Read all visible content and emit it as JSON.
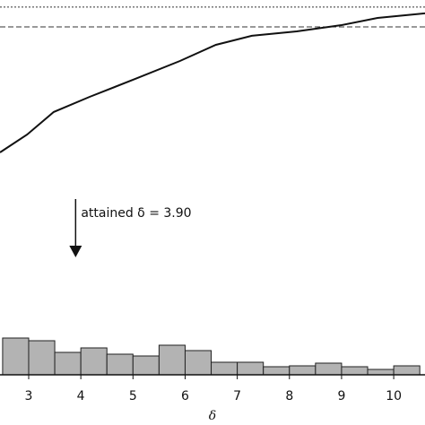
{
  "chart_data": {
    "type": "line+histogram",
    "xlim": [
      2.45,
      10.6
    ],
    "xticks": [
      3,
      4,
      5,
      6,
      7,
      8,
      9,
      10
    ],
    "xlabel": "δ",
    "line": {
      "x": [
        2.45,
        2.97,
        3.48,
        4.17,
        5.04,
        5.9,
        6.59,
        7.28,
        8.14,
        9.0,
        9.69,
        10.6
      ],
      "values": [
        0.154,
        0.256,
        0.385,
        0.472,
        0.574,
        0.677,
        0.769,
        0.821,
        0.846,
        0.882,
        0.923,
        0.949
      ],
      "ylim": [
        0,
        1
      ],
      "reference_lines": [
        0.985,
        0.872
      ],
      "color": "#111111"
    },
    "annotation": {
      "text": "attained δ = 3.90",
      "x": 3.9
    },
    "histogram": {
      "bins": [
        2.5,
        3,
        3.5,
        4,
        4.5,
        5,
        5.5,
        6,
        6.5,
        7,
        7.5,
        8,
        8.5,
        9,
        9.5,
        10,
        10.5
      ],
      "counts": [
        41,
        38,
        25,
        30,
        23,
        21,
        33,
        27,
        14,
        14,
        9,
        10,
        13,
        9,
        6,
        10
      ],
      "ylim": [
        0,
        50
      ],
      "color": "#b3b3b3"
    }
  }
}
